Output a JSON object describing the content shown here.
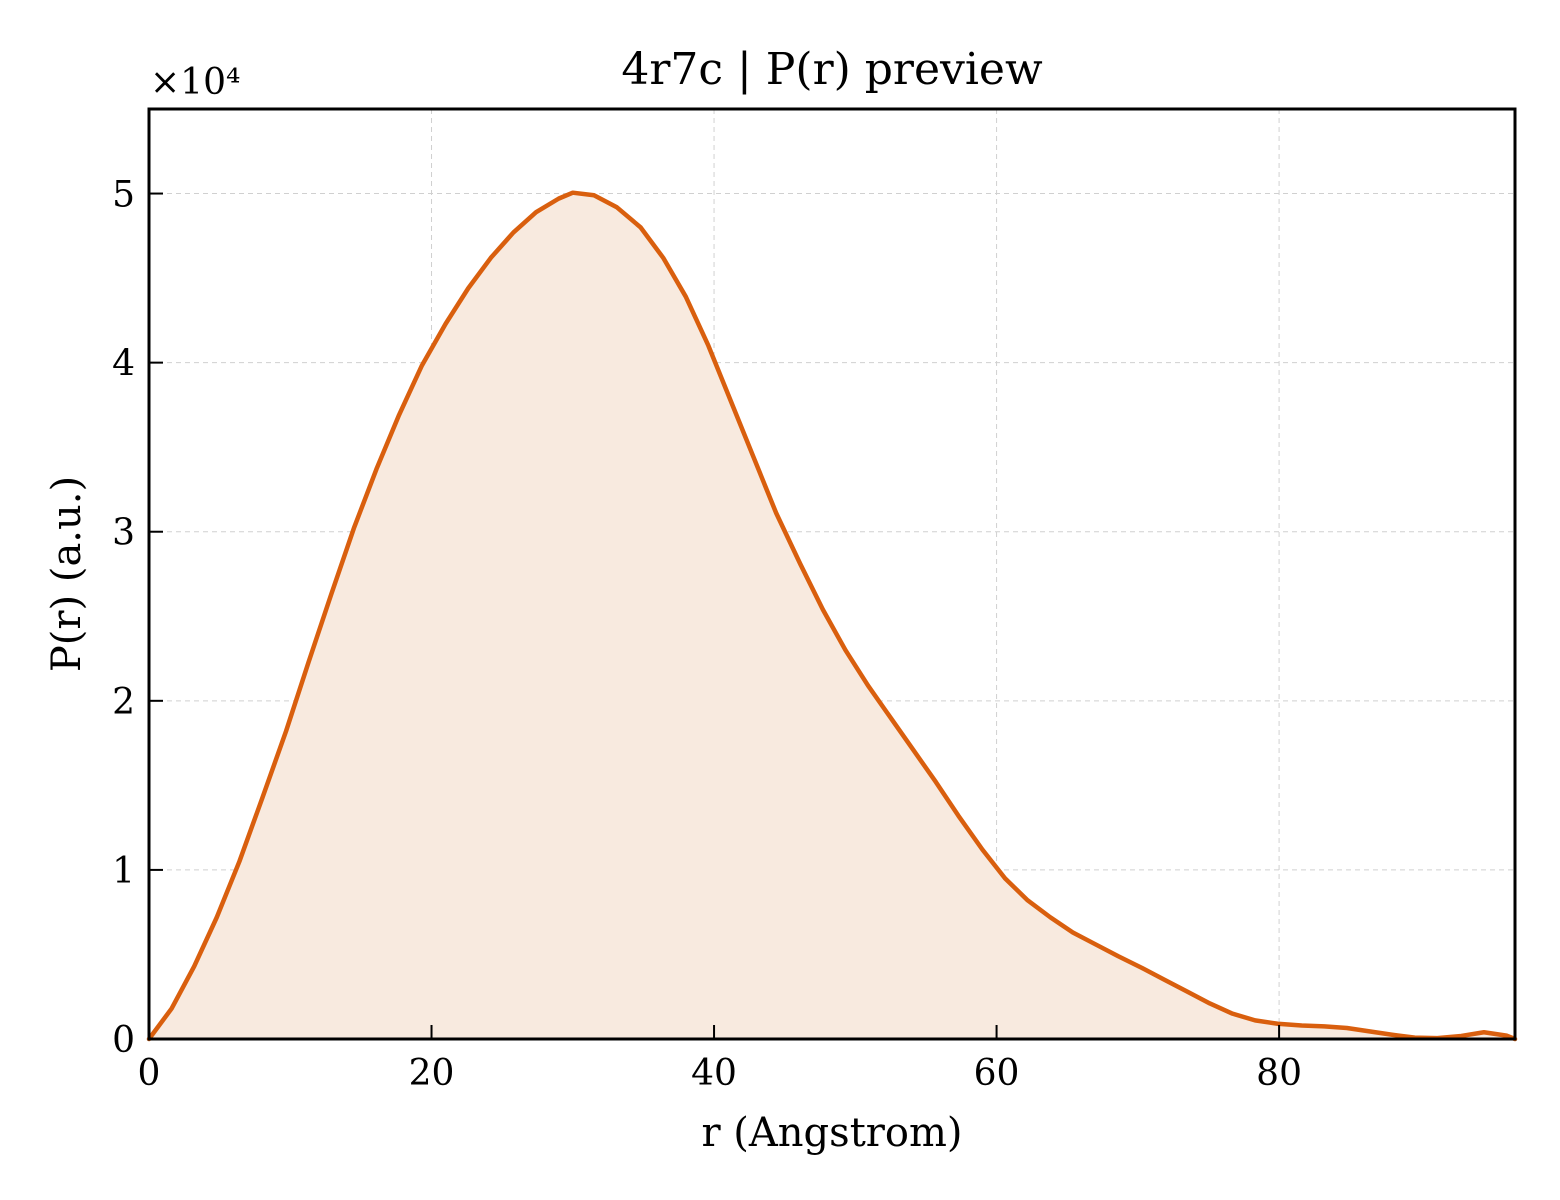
{
  "chart_data": {
    "type": "area",
    "title": "4r7c | P(r) preview",
    "xlabel": "r (Angstrom)",
    "ylabel": "P(r) (a.u.)",
    "y_offset_label": "×10⁴",
    "y_scale": 10000,
    "xlim": [
      0,
      96.7
    ],
    "ylim": [
      0,
      55000
    ],
    "x_ticks": [
      0,
      20,
      40,
      60,
      80
    ],
    "x_tick_labels": [
      "0",
      "20",
      "40",
      "60",
      "80"
    ],
    "y_ticks": [
      0,
      10000,
      20000,
      30000,
      40000,
      50000
    ],
    "y_tick_labels": [
      "0",
      "1",
      "2",
      "3",
      "4",
      "5"
    ],
    "grid": true,
    "line_color": "#d95f0e",
    "fill_color": "#f8eadf",
    "series": [
      {
        "x": [
          0,
          1.6,
          3.2,
          4.8,
          6.4,
          8.0,
          9.7,
          11.3,
          12.9,
          14.5,
          16.1,
          17.7,
          19.3,
          21.0,
          22.6,
          24.2,
          25.8,
          27.4,
          29.0,
          30.0,
          31.5,
          33.1,
          34.8,
          36.4,
          38.0,
          39.6,
          41.2,
          42.8,
          44.4,
          46.1,
          47.7,
          49.3,
          50.9,
          52.5,
          54.1,
          55.7,
          57.3,
          59.0,
          60.6,
          62.2,
          63.8,
          65.4,
          67.0,
          68.6,
          70.3,
          71.9,
          73.5,
          75.1,
          76.7,
          78.3,
          79.9,
          81.6,
          83.2,
          84.8,
          86.4,
          88.0,
          89.6,
          91.2,
          92.9,
          94.5,
          96.1,
          96.7
        ],
        "y": [
          0,
          1800,
          4300,
          7200,
          10500,
          14200,
          18200,
          22300,
          26300,
          30200,
          33700,
          36900,
          39800,
          42300,
          44400,
          46200,
          47700,
          48900,
          49700,
          50050,
          49900,
          49200,
          48000,
          46200,
          43900,
          41000,
          37700,
          34400,
          31100,
          28100,
          25400,
          23000,
          20900,
          19000,
          17100,
          15200,
          13200,
          11200,
          9500,
          8200,
          7200,
          6300,
          5600,
          4900,
          4200,
          3500,
          2800,
          2100,
          1500,
          1100,
          900,
          800,
          750,
          650,
          450,
          250,
          80,
          50,
          180,
          400,
          200,
          0
        ]
      }
    ]
  }
}
